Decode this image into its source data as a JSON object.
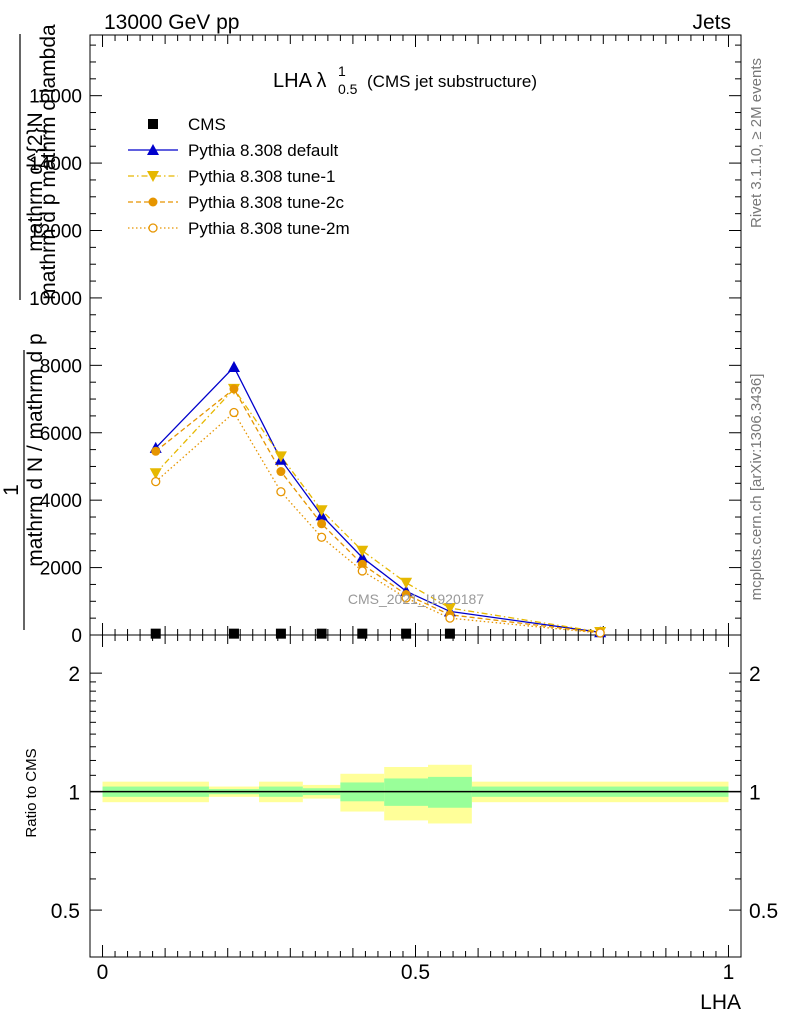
{
  "header": {
    "left": "13000 GeV pp",
    "right": "Jets"
  },
  "side_labels": {
    "rivet": "Rivet 3.1.10, ≥ 2M events",
    "mcplots": "mcplots.cern.ch [arXiv:1306.3436]"
  },
  "watermark": "CMS_2021_I1920187",
  "chart_data": {
    "type": "line",
    "title_main": "LHA λ",
    "title_sup": "1",
    "title_sub": "0.5",
    "title_suffix": "(CMS jet substructure)",
    "xlabel": "LHA",
    "ylabel_num": "mathrm d^{2}N",
    "ylabel_den": "mathrm d p_{mathrm T} mathrm d lambda",
    "ylabel_prefix_num": "1",
    "ylabel_prefix_den": "mathrm d N / mathrm d p_{mathrm T}",
    "ylabel_display": {
      "big_num": "mathrm d^{2}N",
      "big_den_l1": "mathrm d p mathrm d lambda",
      "small_num": "1",
      "small_den_l1": "mathrm d N / mathrm d p"
    },
    "xlim": [
      -0.02,
      1.02
    ],
    "ylim": [
      0,
      17800
    ],
    "x_ticks": [
      0,
      0.5,
      1
    ],
    "x_tick_labels": [
      "0",
      "0.5",
      "1"
    ],
    "y_ticks": [
      0,
      2000,
      4000,
      6000,
      8000,
      10000,
      12000,
      14000,
      16000
    ],
    "y_tick_labels": [
      "0",
      "2000",
      "4000",
      "6000",
      "8000",
      "10000",
      "12000",
      "14000",
      "16000"
    ],
    "x": [
      0.085,
      0.21,
      0.285,
      0.35,
      0.415,
      0.485,
      0.555,
      0.795
    ],
    "bin_edges": [
      0,
      0.17,
      0.25,
      0.32,
      0.38,
      0.45,
      0.52,
      0.59,
      1.0
    ],
    "series": [
      {
        "name": "CMS",
        "color": "#000000",
        "marker": "square",
        "line": "none",
        "values": [
          40,
          40,
          40,
          40,
          40,
          40,
          40,
          null
        ]
      },
      {
        "name": "Pythia 8.308 default",
        "color": "#0000cc",
        "marker": "triangle-up",
        "line": "solid",
        "values": [
          5550,
          7950,
          5200,
          3550,
          2300,
          1300,
          700,
          80
        ]
      },
      {
        "name": "Pythia 8.308 tune-1",
        "color": "#e6b800",
        "marker": "triangle-down",
        "line": "dashdot",
        "values": [
          4800,
          7300,
          5300,
          3700,
          2500,
          1550,
          800,
          90
        ]
      },
      {
        "name": "Pythia 8.308 tune-2c",
        "color": "#e69500",
        "marker": "circle-filled",
        "line": "dashed",
        "values": [
          5450,
          7300,
          4850,
          3300,
          2100,
          1200,
          600,
          70
        ]
      },
      {
        "name": "Pythia 8.308 tune-2m",
        "color": "#e69500",
        "marker": "circle-open",
        "line": "dotted",
        "values": [
          4550,
          6600,
          4250,
          2900,
          1900,
          1100,
          500,
          60
        ]
      }
    ],
    "ratio": {
      "ylabel": "Ratio to CMS",
      "ylim": [
        0.38,
        2.5
      ],
      "y_ticks": [
        0.5,
        1,
        2
      ],
      "y_tick_labels": [
        "0.5",
        "1",
        "2"
      ],
      "bands": [
        {
          "xmin": 0.0,
          "xmax": 0.17,
          "inner": 0.03,
          "outer": 0.06
        },
        {
          "xmin": 0.17,
          "xmax": 0.25,
          "inner": 0.015,
          "outer": 0.03
        },
        {
          "xmin": 0.25,
          "xmax": 0.32,
          "inner": 0.03,
          "outer": 0.06
        },
        {
          "xmin": 0.32,
          "xmax": 0.38,
          "inner": 0.02,
          "outer": 0.04
        },
        {
          "xmin": 0.38,
          "xmax": 0.45,
          "inner": 0.055,
          "outer": 0.11
        },
        {
          "xmin": 0.45,
          "xmax": 0.52,
          "inner": 0.08,
          "outer": 0.155
        },
        {
          "xmin": 0.52,
          "xmax": 0.59,
          "inner": 0.09,
          "outer": 0.17
        },
        {
          "xmin": 0.59,
          "xmax": 1.0,
          "inner": 0.03,
          "outer": 0.06
        }
      ],
      "inner_color": "#99ff99",
      "outer_color": "#ffff99"
    }
  }
}
